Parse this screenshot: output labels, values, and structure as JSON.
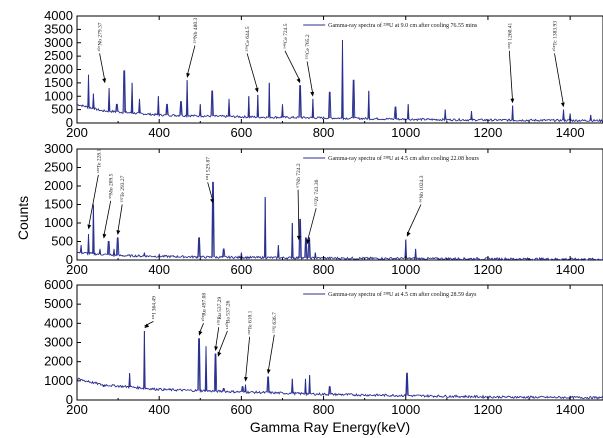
{
  "figure": {
    "ylabel": "Counts",
    "xlabel": "Gamma Ray Energy(keV)"
  },
  "chart_data": [
    {
      "type": "line",
      "legend": "Gamma-ray spectra of ²³⁸U at 9.0 cm after cooling 76.55 mins",
      "xlim": [
        200,
        1480
      ],
      "ylim": [
        0,
        4000
      ],
      "xticks": [
        200,
        400,
        600,
        800,
        1000,
        1200,
        1400
      ],
      "yticks": [
        0,
        500,
        1000,
        1500,
        2000,
        2500,
        3000,
        3500,
        4000
      ],
      "color": "#2a2f8f",
      "baseline": [
        [
          200,
          700
        ],
        [
          260,
          460
        ],
        [
          400,
          300
        ],
        [
          600,
          230
        ],
        [
          800,
          190
        ],
        [
          1000,
          140
        ],
        [
          1200,
          110
        ],
        [
          1480,
          90
        ]
      ],
      "peaks": [
        [
          228,
          1800
        ],
        [
          240,
          1100
        ],
        [
          278,
          1300
        ],
        [
          297,
          700
        ],
        [
          315,
          1950
        ],
        [
          334,
          1500
        ],
        [
          352,
          900
        ],
        [
          398,
          1000
        ],
        [
          419,
          700
        ],
        [
          453,
          800
        ],
        [
          468,
          1600
        ],
        [
          500,
          700
        ],
        [
          529,
          1200
        ],
        [
          570,
          900
        ],
        [
          618,
          1000
        ],
        [
          640,
          1050
        ],
        [
          668,
          1500
        ],
        [
          700,
          700
        ],
        [
          743,
          1400
        ],
        [
          774,
          900
        ],
        [
          815,
          1150
        ],
        [
          846,
          3100
        ],
        [
          873,
          1600
        ],
        [
          910,
          1200
        ],
        [
          975,
          600
        ],
        [
          1006,
          700
        ],
        [
          1096,
          500
        ],
        [
          1160,
          450
        ],
        [
          1260,
          650
        ],
        [
          1384,
          500
        ],
        [
          1400,
          350
        ],
        [
          1450,
          300
        ]
      ],
      "annotations": [
        {
          "text": "¹⁰⁶Nb 279.37",
          "x": 268,
          "y": 1450,
          "lx": 255,
          "ly": 2600
        },
        {
          "text": "²³⁴Nb 480.3",
          "x": 468,
          "y": 1650,
          "lx": 487,
          "ly": 2900
        },
        {
          "text": "²³⁹Ce 644.5",
          "x": 640,
          "y": 1100,
          "lx": 614,
          "ly": 2600
        },
        {
          "text": "¹⁴⁸Ce 724.5",
          "x": 743,
          "y": 1450,
          "lx": 706,
          "ly": 2700
        },
        {
          "text": "¹³⁵Ce 765.2",
          "x": 774,
          "y": 950,
          "lx": 760,
          "ly": 2300
        },
        {
          "text": "¹³¹I 1260.41",
          "x": 1260,
          "y": 700,
          "lx": 1252,
          "ly": 2700
        },
        {
          "text": "¹⁰⁴Tc 1383.93",
          "x": 1384,
          "y": 550,
          "lx": 1362,
          "ly": 2600
        }
      ]
    },
    {
      "type": "line",
      "legend": "Gamma-ray spectra of ²³⁸U at 4.5 cm after cooling 22.08 hours",
      "xlim": [
        200,
        1480
      ],
      "ylim": [
        0,
        3000
      ],
      "xticks": [
        200,
        400,
        600,
        800,
        1000,
        1200,
        1400
      ],
      "yticks": [
        0,
        500,
        1000,
        1500,
        2000,
        2500,
        3000
      ],
      "color": "#2a2f8f",
      "baseline": [
        [
          200,
          200
        ],
        [
          300,
          120
        ],
        [
          500,
          80
        ],
        [
          800,
          50
        ],
        [
          1000,
          40
        ],
        [
          1480,
          20
        ]
      ],
      "peaks": [
        [
          210,
          400
        ],
        [
          228,
          700
        ],
        [
          240,
          1500
        ],
        [
          256,
          300
        ],
        [
          277,
          500
        ],
        [
          290,
          300
        ],
        [
          299,
          600
        ],
        [
          364,
          200
        ],
        [
          400,
          150
        ],
        [
          497,
          600
        ],
        [
          531,
          2100
        ],
        [
          557,
          300
        ],
        [
          600,
          200
        ],
        [
          658,
          1700
        ],
        [
          690,
          400
        ],
        [
          724,
          1000
        ],
        [
          743,
          1100
        ],
        [
          757,
          600
        ],
        [
          765,
          600
        ],
        [
          780,
          200
        ],
        [
          1000,
          550
        ],
        [
          1024,
          300
        ]
      ],
      "annotations": [
        {
          "text": "¹³³Te 228.1",
          "x": 228,
          "y": 800,
          "lx": 252,
          "ly": 2300
        },
        {
          "text": "⁹⁹Mo 209.5",
          "x": 265,
          "y": 550,
          "lx": 282,
          "ly": 1600
        },
        {
          "text": "¹³²Te 293.27",
          "x": 299,
          "y": 650,
          "lx": 310,
          "ly": 1500
        },
        {
          "text": "¹³¹I 529.87",
          "x": 531,
          "y": 1500,
          "lx": 518,
          "ly": 2100
        },
        {
          "text": "⁹⁷Nb 724.2",
          "x": 740,
          "y": 500,
          "lx": 738,
          "ly": 1900
        },
        {
          "text": "¹³²Zr 743.36",
          "x": 760,
          "y": 400,
          "lx": 782,
          "ly": 1400
        },
        {
          "text": "⁹⁹Nb 1024.3",
          "x": 1003,
          "y": 600,
          "lx": 1037,
          "ly": 1500
        }
      ]
    },
    {
      "type": "line",
      "legend": "Gamma-ray spectra of ²³⁸U at 4.5 cm after cooling 28.59 days",
      "xlim": [
        200,
        1480
      ],
      "ylim": [
        0,
        6000
      ],
      "xticks": [
        200,
        400,
        600,
        800,
        1000,
        1200,
        1400
      ],
      "yticks": [
        0,
        1000,
        2000,
        3000,
        4000,
        5000,
        6000
      ],
      "color": "#2a2f8f",
      "baseline": [
        [
          200,
          1100
        ],
        [
          260,
          800
        ],
        [
          400,
          550
        ],
        [
          600,
          420
        ],
        [
          800,
          300
        ],
        [
          1000,
          230
        ],
        [
          1200,
          160
        ],
        [
          1480,
          120
        ]
      ],
      "peaks": [
        [
          228,
          1000
        ],
        [
          265,
          700
        ],
        [
          328,
          1400
        ],
        [
          364,
          3600
        ],
        [
          400,
          600
        ],
        [
          454,
          500
        ],
        [
          497,
          3200
        ],
        [
          514,
          2800
        ],
        [
          537,
          2400
        ],
        [
          557,
          600
        ],
        [
          603,
          700
        ],
        [
          610,
          800
        ],
        [
          665,
          1200
        ],
        [
          724,
          1100
        ],
        [
          756,
          1100
        ],
        [
          766,
          1300
        ],
        [
          815,
          700
        ],
        [
          1003,
          1400
        ]
      ],
      "annotations": [
        {
          "text": "¹³¹I 364.49",
          "x": 364,
          "y": 3700,
          "lx": 386,
          "ly": 4100
        },
        {
          "text": "¹⁰³Ru 497.08",
          "x": 497,
          "y": 3300,
          "lx": 508,
          "ly": 4000
        },
        {
          "text": "¹⁰³Ru 537.29",
          "x": 537,
          "y": 2500,
          "lx": 545,
          "ly": 3800
        },
        {
          "text": "¹⁴⁰Ba 537.26",
          "x": 543,
          "y": 2200,
          "lx": 566,
          "ly": 3600
        },
        {
          "text": "¹³²Te 610.1",
          "x": 610,
          "y": 900,
          "lx": 620,
          "ly": 3300
        },
        {
          "text": "¹³¹I 636.7",
          "x": 665,
          "y": 1300,
          "lx": 680,
          "ly": 3400
        }
      ]
    }
  ]
}
